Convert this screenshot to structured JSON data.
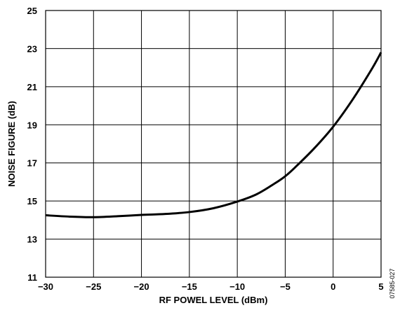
{
  "chart_data": {
    "type": "line",
    "title": "",
    "xlabel": "RF POWEL LEVEL (dBm)",
    "ylabel": "NOISE FIGURE (dB)",
    "xlim": [
      -30,
      5
    ],
    "ylim": [
      11,
      25
    ],
    "xticks": [
      -30,
      -25,
      -20,
      -15,
      -10,
      -5,
      0,
      5
    ],
    "yticks": [
      11,
      13,
      15,
      17,
      19,
      21,
      23,
      25
    ],
    "xtick_labels": [
      "−30",
      "−25",
      "−20",
      "−15",
      "−10",
      "−5",
      "0",
      "5"
    ],
    "ytick_labels": [
      "11",
      "13",
      "15",
      "17",
      "19",
      "21",
      "23",
      "25"
    ],
    "grid": true,
    "legend": "none",
    "line_color": "#000000",
    "series": [
      {
        "x": [
          -30,
          -27.5,
          -25,
          -22.5,
          -20,
          -17.5,
          -15,
          -12.5,
          -10,
          -8,
          -6,
          -5,
          -4,
          -2,
          0,
          2,
          4,
          5
        ],
        "y": [
          14.25,
          14.18,
          14.15,
          14.2,
          14.27,
          14.32,
          14.42,
          14.62,
          14.97,
          15.35,
          15.95,
          16.3,
          16.75,
          17.75,
          18.9,
          20.3,
          21.9,
          22.8
        ]
      }
    ],
    "figure_id": "07585-027"
  }
}
